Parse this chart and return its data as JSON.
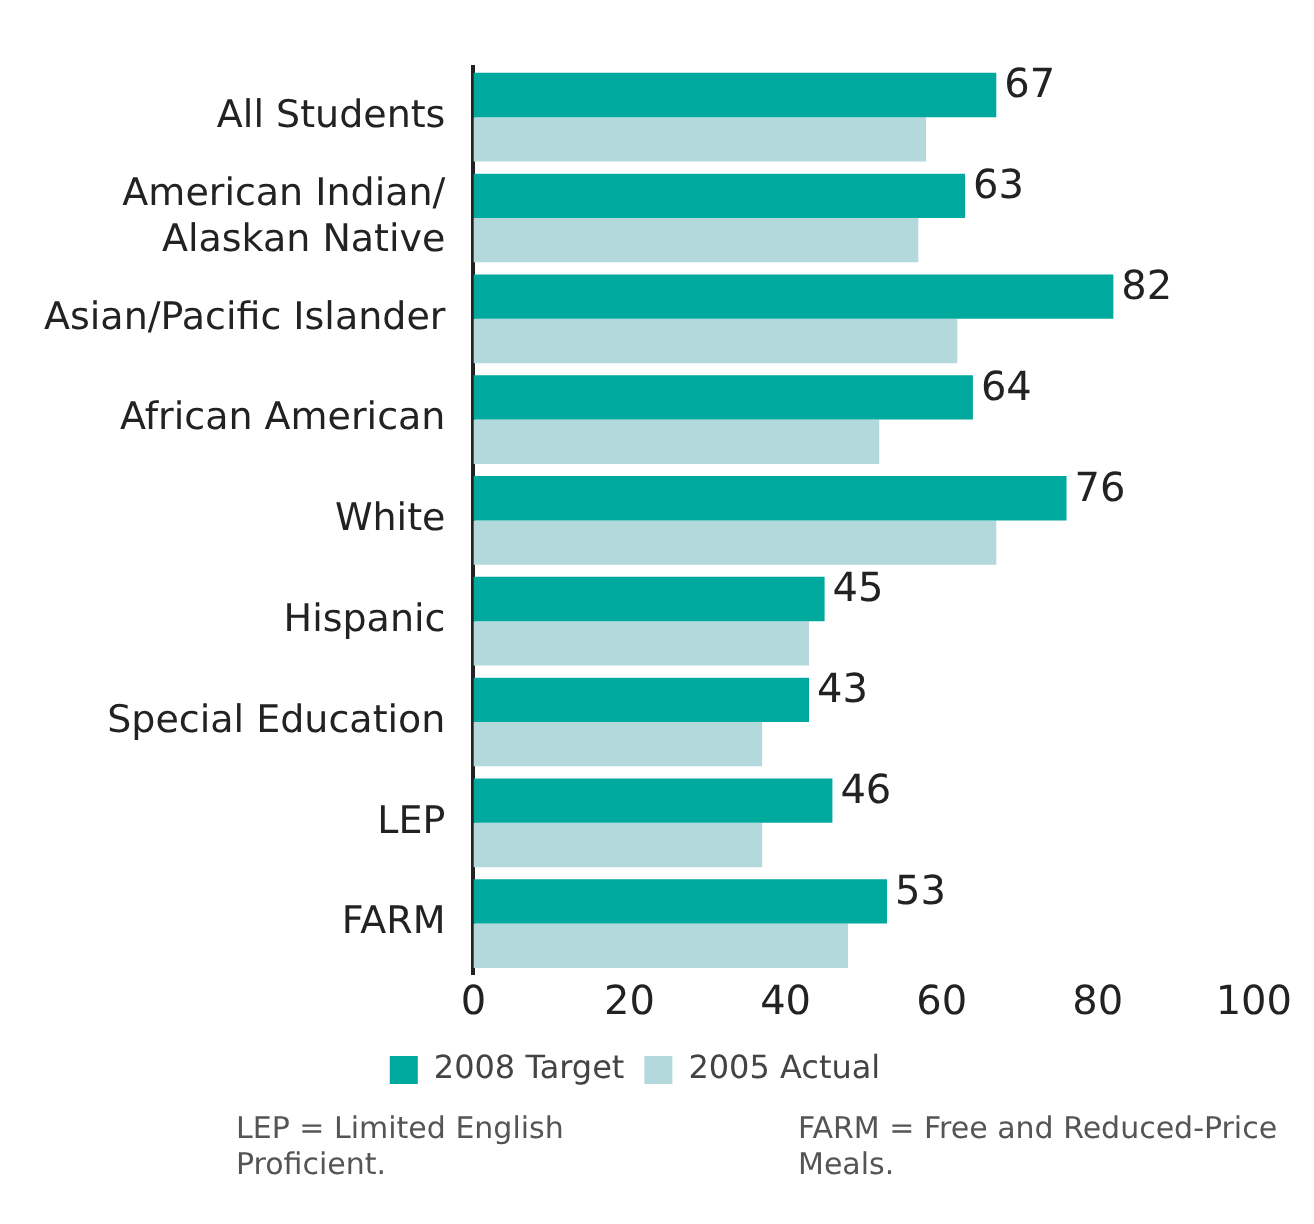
{
  "chart_data": {
    "type": "bar",
    "orientation": "horizontal",
    "categories": [
      "All Students",
      "American Indian/ Alaskan Native",
      "Asian/Pacific Islander",
      "African American",
      "White",
      "Hispanic",
      "Special Education",
      "LEP",
      "FARM"
    ],
    "series": [
      {
        "name": "2008 Target",
        "color": "#00a99d",
        "values": [
          67,
          63,
          82,
          64,
          76,
          45,
          43,
          46,
          53
        ],
        "value_labels": [
          "67",
          "63",
          "82",
          "64",
          "76",
          "45",
          "43",
          "46",
          "53"
        ]
      },
      {
        "name": "2005 Actual",
        "color": "#b3d9dd",
        "values": [
          58,
          57,
          62,
          52,
          67,
          43,
          37,
          37,
          48
        ]
      }
    ],
    "xlim": [
      0,
      100
    ],
    "xticks": [
      0,
      20,
      40,
      60,
      80,
      100
    ],
    "grid": false,
    "legend": "bottom",
    "annotations": [
      "LEP = Limited English Proficient.",
      "FARM = Free and Reduced-Price Meals."
    ]
  }
}
